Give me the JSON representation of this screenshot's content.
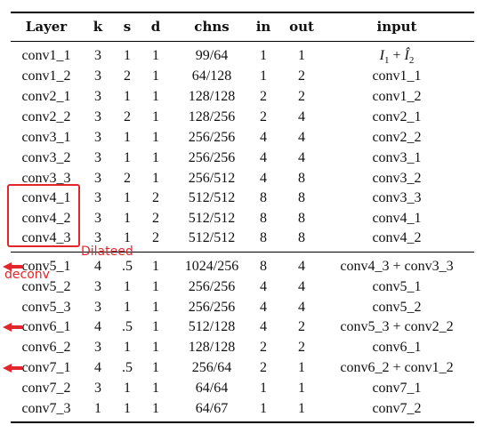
{
  "table": {
    "columns": [
      "Layer",
      "k",
      "s",
      "d",
      "chns",
      "in",
      "out",
      "input"
    ],
    "rows": [
      [
        "conv1_1",
        "3",
        "1",
        "1",
        "99/64",
        "1",
        "1",
        "I_1 + Î_2"
      ],
      [
        "conv1_2",
        "3",
        "2",
        "1",
        "64/128",
        "1",
        "2",
        "conv1_1"
      ],
      [
        "conv2_1",
        "3",
        "1",
        "1",
        "128/128",
        "2",
        "2",
        "conv1_2"
      ],
      [
        "conv2_2",
        "3",
        "2",
        "1",
        "128/256",
        "2",
        "4",
        "conv2_1"
      ],
      [
        "conv3_1",
        "3",
        "1",
        "1",
        "256/256",
        "4",
        "4",
        "conv2_2"
      ],
      [
        "conv3_2",
        "3",
        "1",
        "1",
        "256/256",
        "4",
        "4",
        "conv3_1"
      ],
      [
        "conv3_3",
        "3",
        "2",
        "1",
        "256/512",
        "4",
        "8",
        "conv3_2"
      ],
      [
        "conv4_1",
        "3",
        "1",
        "2",
        "512/512",
        "8",
        "8",
        "conv3_3"
      ],
      [
        "conv4_2",
        "3",
        "1",
        "2",
        "512/512",
        "8",
        "8",
        "conv4_1"
      ],
      [
        "conv4_3",
        "3",
        "1",
        "2",
        "512/512",
        "8",
        "8",
        "conv4_2"
      ],
      [
        "conv5_1",
        "4",
        ".5",
        "1",
        "1024/256",
        "8",
        "4",
        "conv4_3 + conv3_3"
      ],
      [
        "conv5_2",
        "3",
        "1",
        "1",
        "256/256",
        "4",
        "4",
        "conv5_1"
      ],
      [
        "conv5_3",
        "3",
        "1",
        "1",
        "256/256",
        "4",
        "4",
        "conv5_2"
      ],
      [
        "conv6_1",
        "4",
        ".5",
        "1",
        "512/128",
        "4",
        "2",
        "conv5_3 + conv2_2"
      ],
      [
        "conv6_2",
        "3",
        "1",
        "1",
        "128/128",
        "2",
        "2",
        "conv6_1"
      ],
      [
        "conv7_1",
        "4",
        ".5",
        "1",
        "256/64",
        "2",
        "1",
        "conv6_2 + conv1_2"
      ],
      [
        "conv7_2",
        "3",
        "1",
        "1",
        "64/64",
        "1",
        "1",
        "conv7_1"
      ],
      [
        "conv7_3",
        "1",
        "1",
        "1",
        "64/67",
        "1",
        "1",
        "conv7_2"
      ]
    ]
  },
  "math": {
    "i1_base": "I",
    "i1_sub": "1",
    "plus": "+",
    "i2_base": "Î",
    "i2_sub": "2"
  },
  "annotations": {
    "dilated": "Dilateed",
    "deconv": "deconv"
  },
  "colors": {
    "annotation_red": "#e3262b",
    "rule": "#000000"
  }
}
